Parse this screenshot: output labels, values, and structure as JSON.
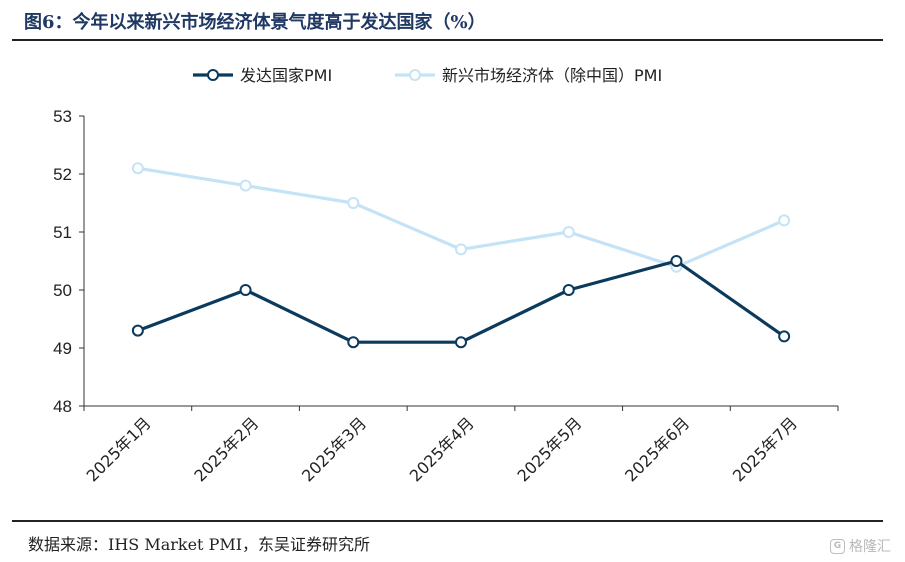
{
  "figure": {
    "title": "图6：今年以来新兴市场经济体景气度高于发达国家（%）",
    "source": "数据来源：IHS Market PMI，东吴证券研究所",
    "watermark": "格隆汇"
  },
  "chart_data": {
    "type": "line",
    "categories": [
      "2025年1月",
      "2025年2月",
      "2025年3月",
      "2025年4月",
      "2025年5月",
      "2025年6月",
      "2025年7月"
    ],
    "series": [
      {
        "name": "发达国家PMI",
        "values": [
          49.3,
          50.0,
          49.1,
          49.1,
          50.0,
          50.5,
          49.2
        ],
        "color": "#0b3a5d"
      },
      {
        "name": "新兴市场经济体（除中国）PMI",
        "values": [
          52.1,
          51.8,
          51.5,
          50.7,
          51.0,
          50.4,
          51.2
        ],
        "color": "#c5e3f6"
      }
    ],
    "ylim": [
      48,
      53
    ],
    "yticks": [
      48,
      49,
      50,
      51,
      52,
      53
    ],
    "grid": false,
    "legend_position": "top-center",
    "marker": "hollow-circle"
  }
}
